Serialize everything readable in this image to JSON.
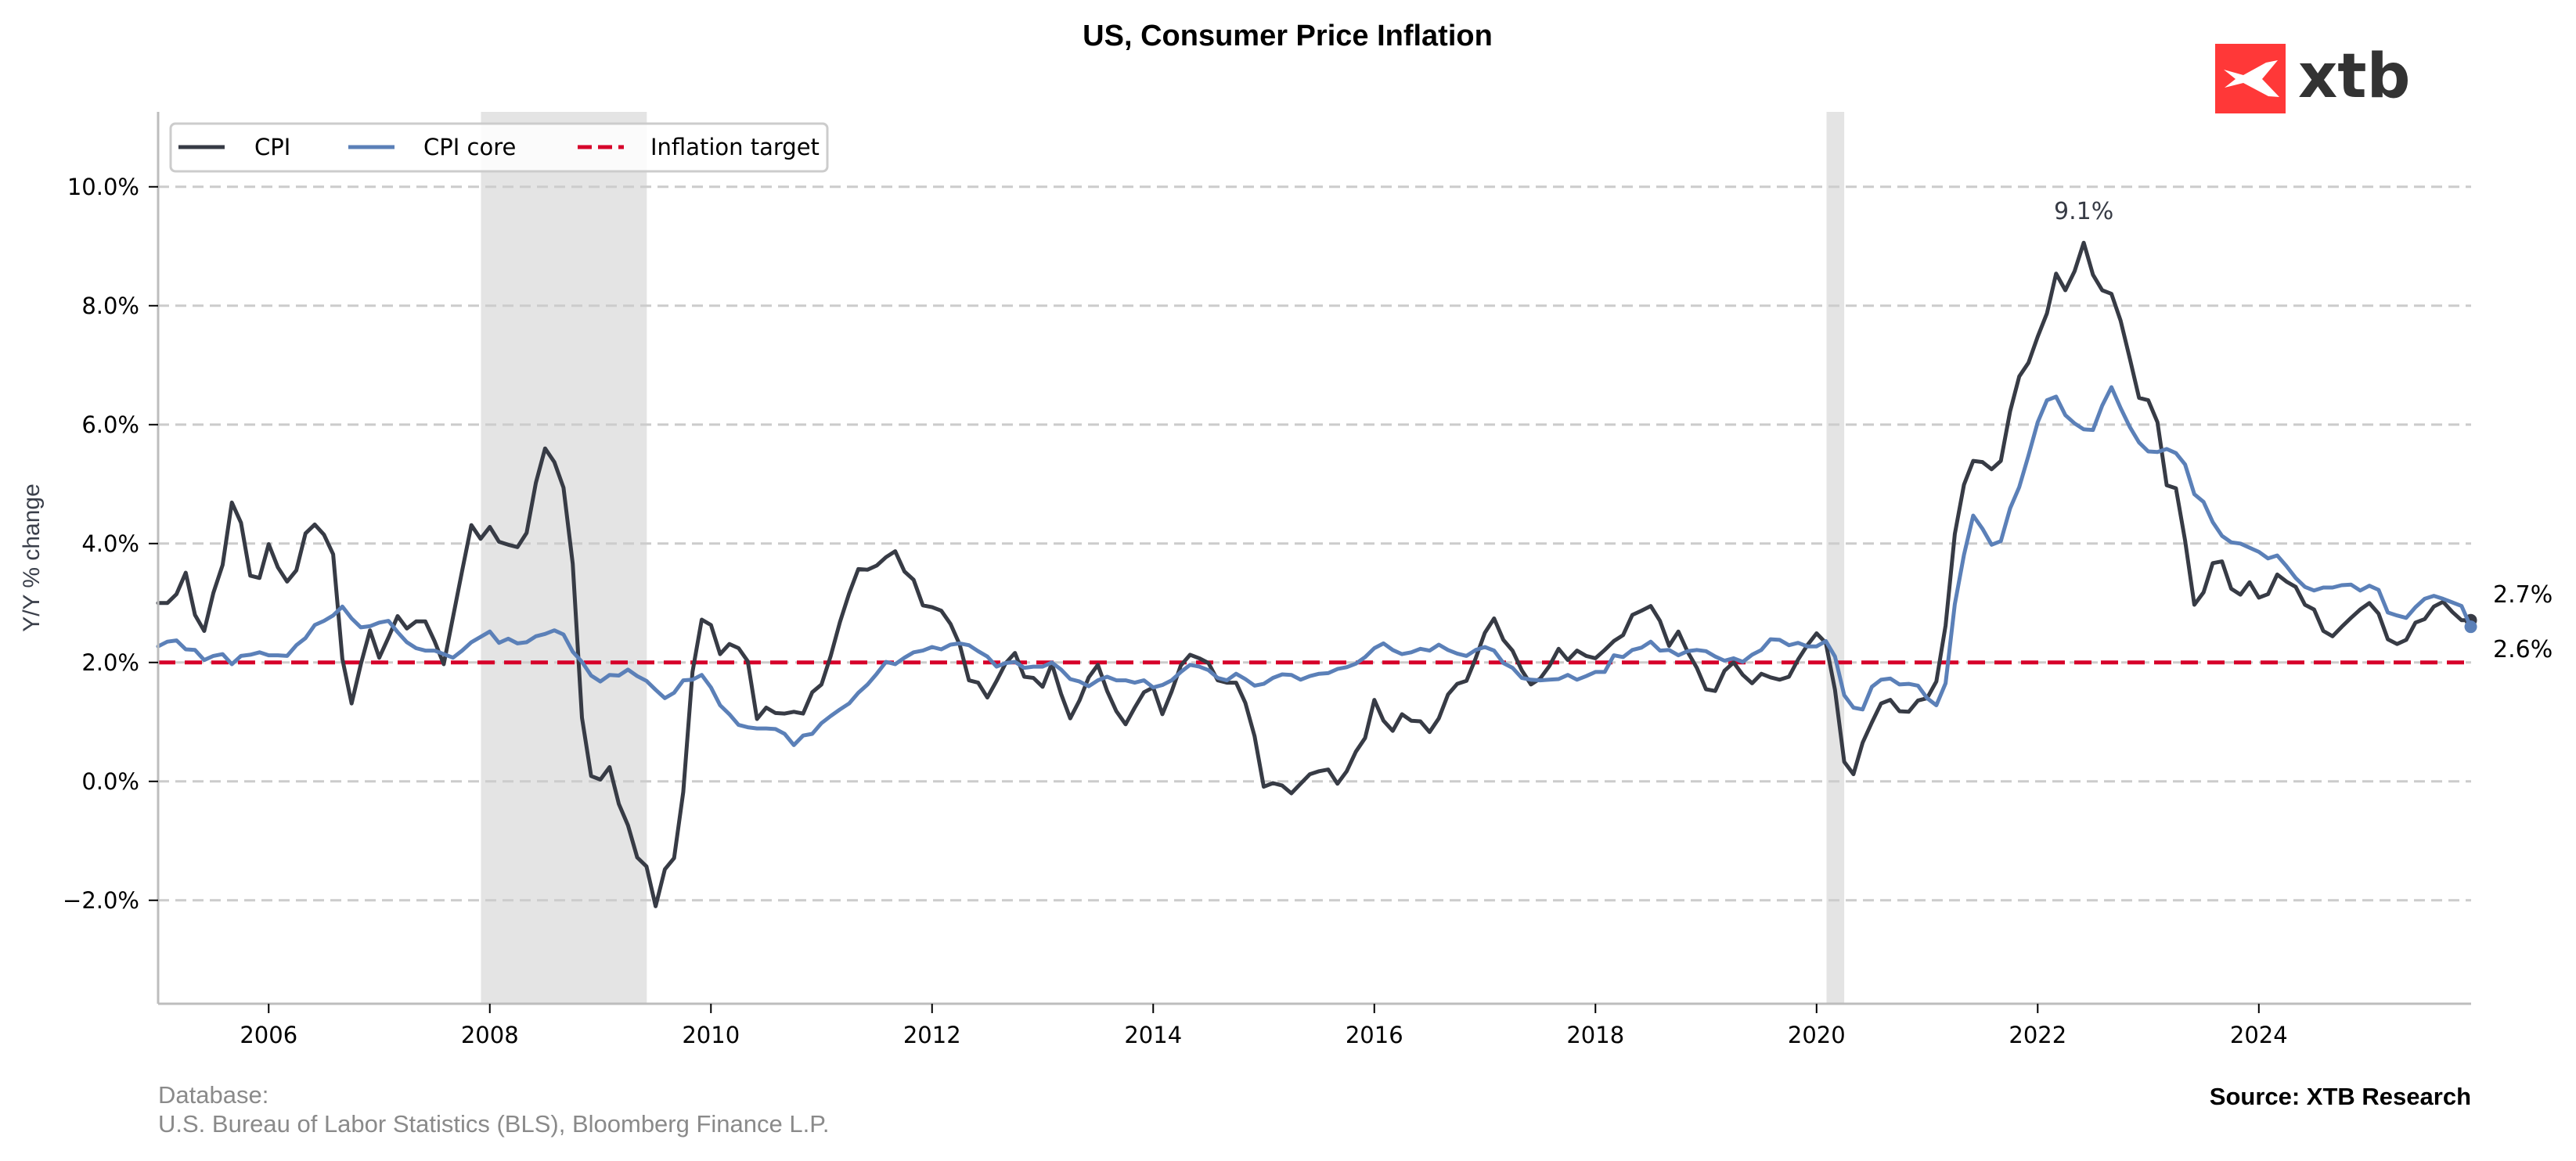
{
  "chart_data": {
    "type": "line",
    "title": "US, Consumer Price Inflation",
    "xlabel": "",
    "ylabel": "Y/Y % change",
    "x_start": "2005-01",
    "x_end": "2025-12",
    "frequency": "monthly",
    "xlim": [
      2005.0,
      2025.92
    ],
    "ylim": [
      -3.74,
      11.26
    ],
    "x_ticks": [
      2006,
      2008,
      2010,
      2012,
      2014,
      2016,
      2018,
      2020,
      2022,
      2024
    ],
    "x_tick_labels": [
      "2006",
      "2008",
      "2010",
      "2012",
      "2014",
      "2016",
      "2018",
      "2020",
      "2022",
      "2024"
    ],
    "y_ticks": [
      -2,
      0,
      2,
      4,
      6,
      8,
      10
    ],
    "y_tick_labels": [
      "−2.0%",
      "0.0%",
      "2.0%",
      "4.0%",
      "6.0%",
      "8.0%",
      "10.0%"
    ],
    "grid": "horizontal dashed",
    "legend_position": "top-left",
    "shaded_periods": [
      {
        "start": 2007.92,
        "end": 2009.42,
        "label": "recession 2008-2009"
      },
      {
        "start": 2020.09,
        "end": 2020.25,
        "label": "recession 2020"
      }
    ],
    "series": [
      {
        "name": "CPI",
        "color": "#373b45",
        "values": [
          3.0,
          3.0,
          3.15,
          3.51,
          2.8,
          2.53,
          3.17,
          3.64,
          4.69,
          4.35,
          3.46,
          3.42,
          3.99,
          3.6,
          3.36,
          3.55,
          4.17,
          4.32,
          4.15,
          3.82,
          2.06,
          1.31,
          1.97,
          2.54,
          2.08,
          2.42,
          2.78,
          2.57,
          2.69,
          2.69,
          2.36,
          1.97,
          2.76,
          3.54,
          4.31,
          4.08,
          4.28,
          4.03,
          3.98,
          3.94,
          4.18,
          5.02,
          5.6,
          5.37,
          4.94,
          3.66,
          1.07,
          0.09,
          0.03,
          0.24,
          -0.38,
          -0.74,
          -1.28,
          -1.43,
          -2.1,
          -1.48,
          -1.29,
          -0.18,
          1.84,
          2.72,
          2.63,
          2.14,
          2.31,
          2.24,
          2.02,
          1.05,
          1.24,
          1.15,
          1.14,
          1.17,
          1.14,
          1.5,
          1.63,
          2.11,
          2.68,
          3.16,
          3.57,
          3.56,
          3.63,
          3.77,
          3.87,
          3.53,
          3.39,
          2.96,
          2.93,
          2.87,
          2.65,
          2.3,
          1.7,
          1.66,
          1.41,
          1.69,
          1.99,
          2.16,
          1.76,
          1.74,
          1.59,
          1.98,
          1.47,
          1.06,
          1.36,
          1.75,
          1.96,
          1.52,
          1.18,
          0.96,
          1.24,
          1.5,
          1.58,
          1.13,
          1.51,
          1.95,
          2.13,
          2.07,
          1.99,
          1.7,
          1.66,
          1.66,
          1.32,
          0.76,
          -0.09,
          -0.03,
          -0.07,
          -0.2,
          -0.04,
          0.12,
          0.17,
          0.2,
          -0.04,
          0.17,
          0.5,
          0.73,
          1.37,
          1.02,
          0.85,
          1.13,
          1.02,
          1.01,
          0.83,
          1.06,
          1.46,
          1.64,
          1.69,
          2.07,
          2.5,
          2.74,
          2.38,
          2.2,
          1.87,
          1.63,
          1.73,
          1.94,
          2.23,
          2.04,
          2.2,
          2.11,
          2.07,
          2.21,
          2.36,
          2.46,
          2.8,
          2.87,
          2.95,
          2.7,
          2.28,
          2.52,
          2.18,
          1.91,
          1.55,
          1.52,
          1.86,
          2.0,
          1.79,
          1.65,
          1.81,
          1.75,
          1.71,
          1.76,
          2.05,
          2.29,
          2.49,
          2.33,
          1.54,
          0.33,
          0.12,
          0.65,
          0.99,
          1.31,
          1.37,
          1.18,
          1.17,
          1.36,
          1.4,
          1.68,
          2.62,
          4.16,
          4.99,
          5.39,
          5.37,
          5.25,
          5.39,
          6.22,
          6.81,
          7.04,
          7.48,
          7.87,
          8.54,
          8.26,
          8.58,
          9.06,
          8.52,
          8.26,
          8.2,
          7.75,
          7.11,
          6.45,
          6.41,
          6.04,
          4.98,
          4.93,
          4.05,
          2.97,
          3.18,
          3.67,
          3.7,
          3.24,
          3.14,
          3.35,
          3.09,
          3.15,
          3.48,
          3.36,
          3.27,
          2.97,
          2.89,
          2.53,
          2.44,
          2.6,
          2.75,
          2.89,
          3.0,
          2.82,
          2.39,
          2.31,
          2.38,
          2.67,
          2.73,
          2.94,
          3.02,
          2.85,
          2.71,
          2.71
        ]
      },
      {
        "name": "CPI core",
        "color": "#5b80b8",
        "values": [
          2.27,
          2.35,
          2.37,
          2.22,
          2.21,
          2.04,
          2.11,
          2.14,
          1.97,
          2.11,
          2.13,
          2.17,
          2.12,
          2.12,
          2.11,
          2.29,
          2.41,
          2.63,
          2.7,
          2.79,
          2.94,
          2.74,
          2.59,
          2.61,
          2.67,
          2.7,
          2.51,
          2.34,
          2.24,
          2.2,
          2.2,
          2.14,
          2.08,
          2.2,
          2.34,
          2.43,
          2.52,
          2.33,
          2.4,
          2.32,
          2.34,
          2.44,
          2.48,
          2.54,
          2.47,
          2.18,
          2.01,
          1.78,
          1.68,
          1.79,
          1.78,
          1.88,
          1.77,
          1.69,
          1.54,
          1.4,
          1.49,
          1.7,
          1.71,
          1.79,
          1.58,
          1.28,
          1.13,
          0.95,
          0.91,
          0.89,
          0.89,
          0.88,
          0.8,
          0.61,
          0.77,
          0.8,
          0.98,
          1.1,
          1.21,
          1.31,
          1.49,
          1.63,
          1.81,
          2.01,
          1.97,
          2.08,
          2.17,
          2.2,
          2.26,
          2.22,
          2.3,
          2.32,
          2.29,
          2.19,
          2.1,
          1.93,
          1.99,
          2.01,
          1.91,
          1.93,
          1.93,
          2.0,
          1.88,
          1.72,
          1.68,
          1.6,
          1.7,
          1.76,
          1.7,
          1.7,
          1.66,
          1.7,
          1.58,
          1.62,
          1.7,
          1.84,
          1.96,
          1.93,
          1.87,
          1.74,
          1.7,
          1.81,
          1.72,
          1.61,
          1.64,
          1.74,
          1.8,
          1.79,
          1.71,
          1.77,
          1.81,
          1.82,
          1.89,
          1.92,
          1.98,
          2.09,
          2.24,
          2.32,
          2.21,
          2.14,
          2.17,
          2.23,
          2.2,
          2.3,
          2.21,
          2.15,
          2.11,
          2.21,
          2.26,
          2.2,
          1.99,
          1.91,
          1.74,
          1.71,
          1.7,
          1.71,
          1.72,
          1.79,
          1.71,
          1.77,
          1.84,
          1.84,
          2.12,
          2.09,
          2.21,
          2.25,
          2.35,
          2.2,
          2.21,
          2.12,
          2.19,
          2.21,
          2.19,
          2.1,
          2.03,
          2.07,
          2.01,
          2.13,
          2.21,
          2.39,
          2.38,
          2.29,
          2.33,
          2.27,
          2.27,
          2.36,
          2.1,
          1.45,
          1.24,
          1.21,
          1.59,
          1.71,
          1.73,
          1.63,
          1.64,
          1.61,
          1.4,
          1.28,
          1.65,
          2.98,
          3.81,
          4.47,
          4.25,
          3.98,
          4.04,
          4.59,
          4.95,
          5.48,
          6.04,
          6.41,
          6.47,
          6.16,
          6.02,
          5.92,
          5.91,
          6.32,
          6.63,
          6.28,
          5.96,
          5.7,
          5.55,
          5.54,
          5.59,
          5.52,
          5.33,
          4.83,
          4.7,
          4.36,
          4.13,
          4.02,
          4.0,
          3.93,
          3.86,
          3.75,
          3.8,
          3.62,
          3.42,
          3.27,
          3.21,
          3.26,
          3.26,
          3.3,
          3.31,
          3.21,
          3.29,
          3.22,
          2.84,
          2.79,
          2.75,
          2.93,
          3.07,
          3.12,
          3.07,
          3.01,
          2.95,
          2.6
        ]
      },
      {
        "name": "Inflation target",
        "color": "#d6002a",
        "style": "dashed",
        "value": 2.0
      }
    ],
    "annotations": [
      {
        "text": "9.1%",
        "x": "2022-06",
        "y": 9.06,
        "target": "CPI peak"
      },
      {
        "text": "2.7%",
        "series": "CPI",
        "position": "right end"
      },
      {
        "text": "2.6%",
        "series": "CPI core",
        "position": "right end"
      }
    ]
  },
  "legend": {
    "items": [
      {
        "label": "CPI",
        "color": "#373b45",
        "style": "solid"
      },
      {
        "label": "CPI core",
        "color": "#5b80b8",
        "style": "solid"
      },
      {
        "label": "Inflation target",
        "color": "#d6002a",
        "style": "dashed"
      }
    ]
  },
  "labels": {
    "peak": "9.1%",
    "cpi_end": "2.7%",
    "core_end": "2.6%"
  },
  "footer": {
    "database_heading": "Database:",
    "database_sources": "U.S. Bureau of Labor Statistics (BLS), Bloomberg Finance L.P.",
    "source": "Source: XTB Research"
  },
  "logo": {
    "text": "xtb",
    "brand_color": "#ff3838",
    "icon": "xtb-x-icon"
  },
  "colors": {
    "shading": "#e4e4e4",
    "grid": "#cccccc",
    "spine": "#bdbdbd"
  }
}
